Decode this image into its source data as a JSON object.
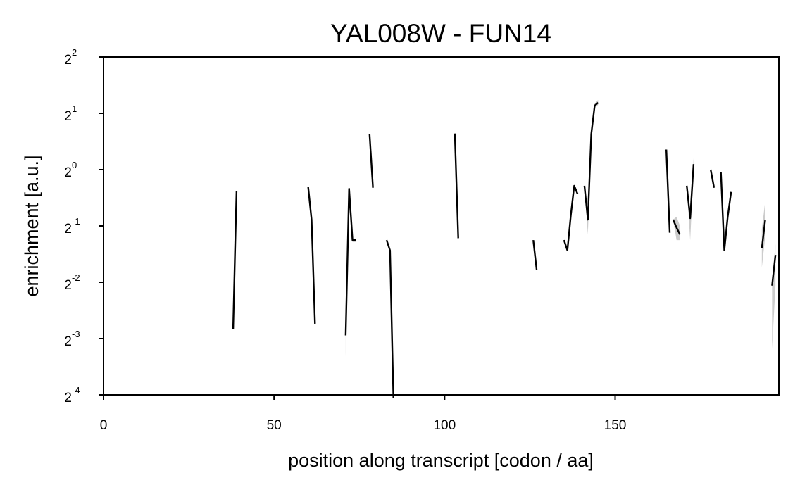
{
  "chart_data": {
    "type": "line",
    "title": "YAL008W - FUN14",
    "xlabel": "position along transcript [codon / aa]",
    "ylabel": "enrichment [a.u.]",
    "xlim": [
      0,
      198
    ],
    "ylim_log2": [
      -4,
      2
    ],
    "y_scale": "log2",
    "x_ticks": [
      0,
      50,
      100,
      150
    ],
    "x_tick_labels": [
      "0",
      "50",
      "100",
      "150"
    ],
    "y_ticks": [
      {
        "base": "2",
        "exp": "2"
      },
      {
        "base": "2",
        "exp": "1"
      },
      {
        "base": "2",
        "exp": "0"
      },
      {
        "base": "2",
        "exp": "-1"
      },
      {
        "base": "2",
        "exp": "-2"
      },
      {
        "base": "2",
        "exp": "-3"
      },
      {
        "base": "2",
        "exp": "-4"
      }
    ],
    "grid": false,
    "line_color": "#000000",
    "band_color": "#cccccc",
    "segments": [
      {
        "x": [
          38,
          39
        ],
        "y": [
          0.14,
          0.77
        ]
      },
      {
        "x": [
          60,
          61,
          62
        ],
        "y": [
          0.81,
          0.54,
          0.15
        ]
      },
      {
        "x": [
          71,
          72,
          73,
          74
        ],
        "y": [
          0.13,
          0.79,
          0.42,
          0.42
        ],
        "lo": [
          0.1,
          0.76,
          0.41,
          0.41
        ]
      },
      {
        "x": [
          78,
          79
        ],
        "y": [
          1.55,
          0.8
        ]
      },
      {
        "x": [
          83,
          84,
          85
        ],
        "y": [
          0.42,
          0.37,
          0.06
        ]
      },
      {
        "x": [
          103,
          104
        ],
        "y": [
          1.56,
          0.43
        ]
      },
      {
        "x": [
          126,
          127
        ],
        "y": [
          0.42,
          0.29
        ]
      },
      {
        "x": [
          135,
          136,
          137,
          138,
          139
        ],
        "y": [
          0.42,
          0.37,
          0.57,
          0.82,
          0.74
        ]
      },
      {
        "x": [
          141,
          142,
          143,
          144,
          145
        ],
        "y": [
          0.82,
          0.54,
          1.55,
          2.2,
          2.28
        ],
        "lo": [
          0.82,
          0.45,
          1.5,
          2.15,
          2.22
        ],
        "hi": [
          0.82,
          0.56,
          1.58,
          2.25,
          2.36
        ]
      },
      {
        "x": [
          165,
          166
        ],
        "y": [
          1.28,
          0.46
        ]
      },
      {
        "x": [
          167,
          168,
          169
        ],
        "y": [
          0.54,
          0.49,
          0.45
        ],
        "lo": [
          0.54,
          0.42,
          0.42
        ],
        "hi": [
          0.54,
          0.56,
          0.5
        ]
      },
      {
        "x": [
          171,
          172,
          173
        ],
        "y": [
          0.82,
          0.55,
          1.07
        ],
        "lo": [
          0.82,
          0.42,
          1.0
        ],
        "hi": [
          0.82,
          0.6,
          1.15
        ]
      },
      {
        "x": [
          178,
          179
        ],
        "y": [
          1.0,
          0.8
        ]
      },
      {
        "x": [
          181,
          182,
          183,
          184
        ],
        "y": [
          0.97,
          0.37,
          0.56,
          0.76
        ]
      },
      {
        "x": [
          193,
          194
        ],
        "y": [
          0.38,
          0.54
        ],
        "lo": [
          0.3,
          0.44
        ],
        "hi": [
          0.48,
          0.68
        ]
      },
      {
        "x": [
          196,
          197
        ],
        "y": [
          0.24,
          0.35
        ],
        "lo": [
          0.11,
          0.24
        ],
        "hi": [
          0.26,
          0.4
        ]
      }
    ]
  }
}
